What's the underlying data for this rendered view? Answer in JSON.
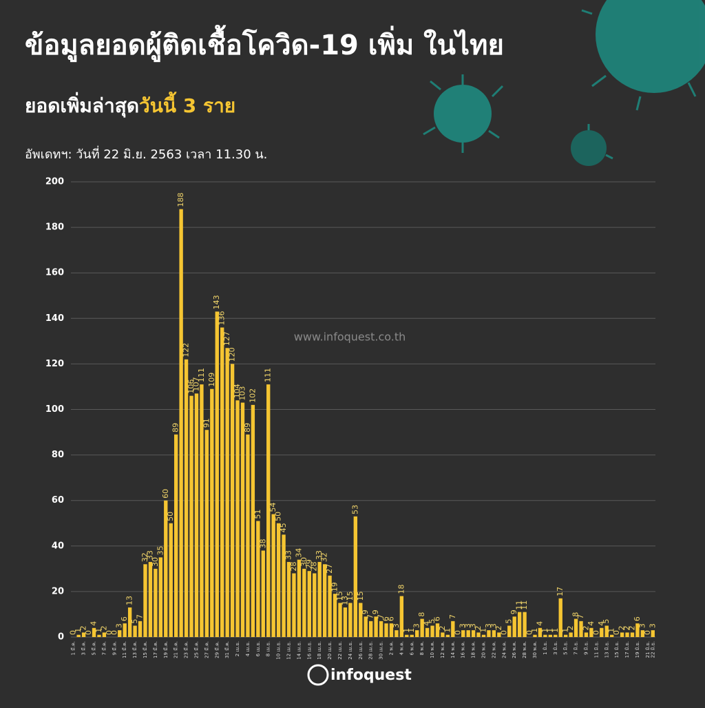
{
  "chart_data": {
    "type": "bar",
    "title": "ข้อมูลยอดผู้ติดเชื้อโควิด-19 เพิ่ม ในไทย",
    "subtitle": {
      "lead": "ยอดเพิ่มล่าสุด",
      "highlight": "วันนี้ 3 ราย"
    },
    "update": "อัพเดทฯ: วันที่ 22 มิ.ย. 2563 เวลา 11.30 น.",
    "watermark": "www.infoquest.co.th",
    "logo": "infoquest",
    "color": "#f5c532",
    "grid": true,
    "ylim": [
      0,
      200
    ],
    "yticks": [
      0,
      20,
      40,
      60,
      80,
      100,
      120,
      140,
      160,
      180,
      200
    ],
    "categories": [
      "1 มี.ค.",
      null,
      "3 มี.ค.",
      null,
      "5 มี.ค.",
      null,
      "7 มี.ค.",
      null,
      "9 มี.ค.",
      null,
      "11 มี.ค.",
      null,
      "13 มี.ค.",
      null,
      "15 มี.ค.",
      null,
      "17 มี.ค.",
      null,
      "19 มี.ค.",
      null,
      "21 มี.ค.",
      null,
      "23 มี.ค.",
      null,
      "25 มี.ค.",
      null,
      "27 มี.ค.",
      null,
      "29 มี.ค.",
      null,
      "31 มี.ค.",
      null,
      "2 เม.ย.",
      null,
      "4 เม.ย.",
      null,
      "6 เม.ย.",
      null,
      "8 เม.ย.",
      null,
      "10 เม.ย.",
      null,
      "12 เม.ย.",
      null,
      "14 เม.ย.",
      null,
      "16 เม.ย.",
      null,
      "18 เม.ย.",
      null,
      "20 เม.ย.",
      null,
      "22 เม.ย.",
      null,
      "24 เม.ย.",
      null,
      "26 เม.ย.",
      null,
      "28 เม.ย.",
      null,
      "30 เม.ย.",
      null,
      "2 พ.ค.",
      null,
      "4 พ.ค.",
      null,
      "6 พ.ค.",
      null,
      "8 พ.ค.",
      null,
      "10 พ.ค.",
      null,
      "12 พ.ค.",
      null,
      "14 พ.ค.",
      null,
      "16 พ.ค.",
      null,
      "18 พ.ค.",
      null,
      "20 พ.ค.",
      null,
      "22 พ.ค.",
      null,
      "24 พ.ค.",
      null,
      "26 พ.ค.",
      null,
      "28 พ.ค.",
      null,
      "30 พ.ค.",
      null,
      "1 มิ.ย.",
      null,
      "3 มิ.ย.",
      null,
      "5 มิ.ย.",
      null,
      "7 มิ.ย.",
      null,
      "9 มิ.ย.",
      null,
      "11 มิ.ย.",
      null,
      "13 มิ.ย.",
      null,
      "15 มิ.ย.",
      null,
      "17 มิ.ย.",
      null,
      "19 มิ.ย.",
      null,
      "21 มิ.ย.",
      "22 มิ.ย."
    ],
    "values": [
      0,
      1,
      2,
      0,
      4,
      1,
      2,
      0,
      0,
      3,
      6,
      13,
      5,
      7,
      32,
      33,
      30,
      35,
      60,
      50,
      89,
      188,
      122,
      106,
      107,
      111,
      91,
      109,
      143,
      136,
      127,
      120,
      104,
      103,
      89,
      102,
      51,
      38,
      111,
      54,
      50,
      45,
      33,
      28,
      34,
      30,
      29,
      28,
      33,
      32,
      27,
      19,
      15,
      13,
      15,
      53,
      15,
      9,
      7,
      9,
      7,
      6,
      6,
      3,
      18,
      1,
      1,
      3,
      8,
      4,
      5,
      6,
      2,
      1,
      7,
      0,
      3,
      3,
      3,
      2,
      1,
      3,
      3,
      2,
      0,
      5,
      9,
      11,
      11,
      0,
      1,
      4,
      1,
      1,
      1,
      17,
      1,
      2,
      8,
      7,
      2,
      4,
      0,
      4,
      5,
      1,
      0,
      2,
      2,
      2,
      6,
      3,
      0,
      3
    ]
  }
}
